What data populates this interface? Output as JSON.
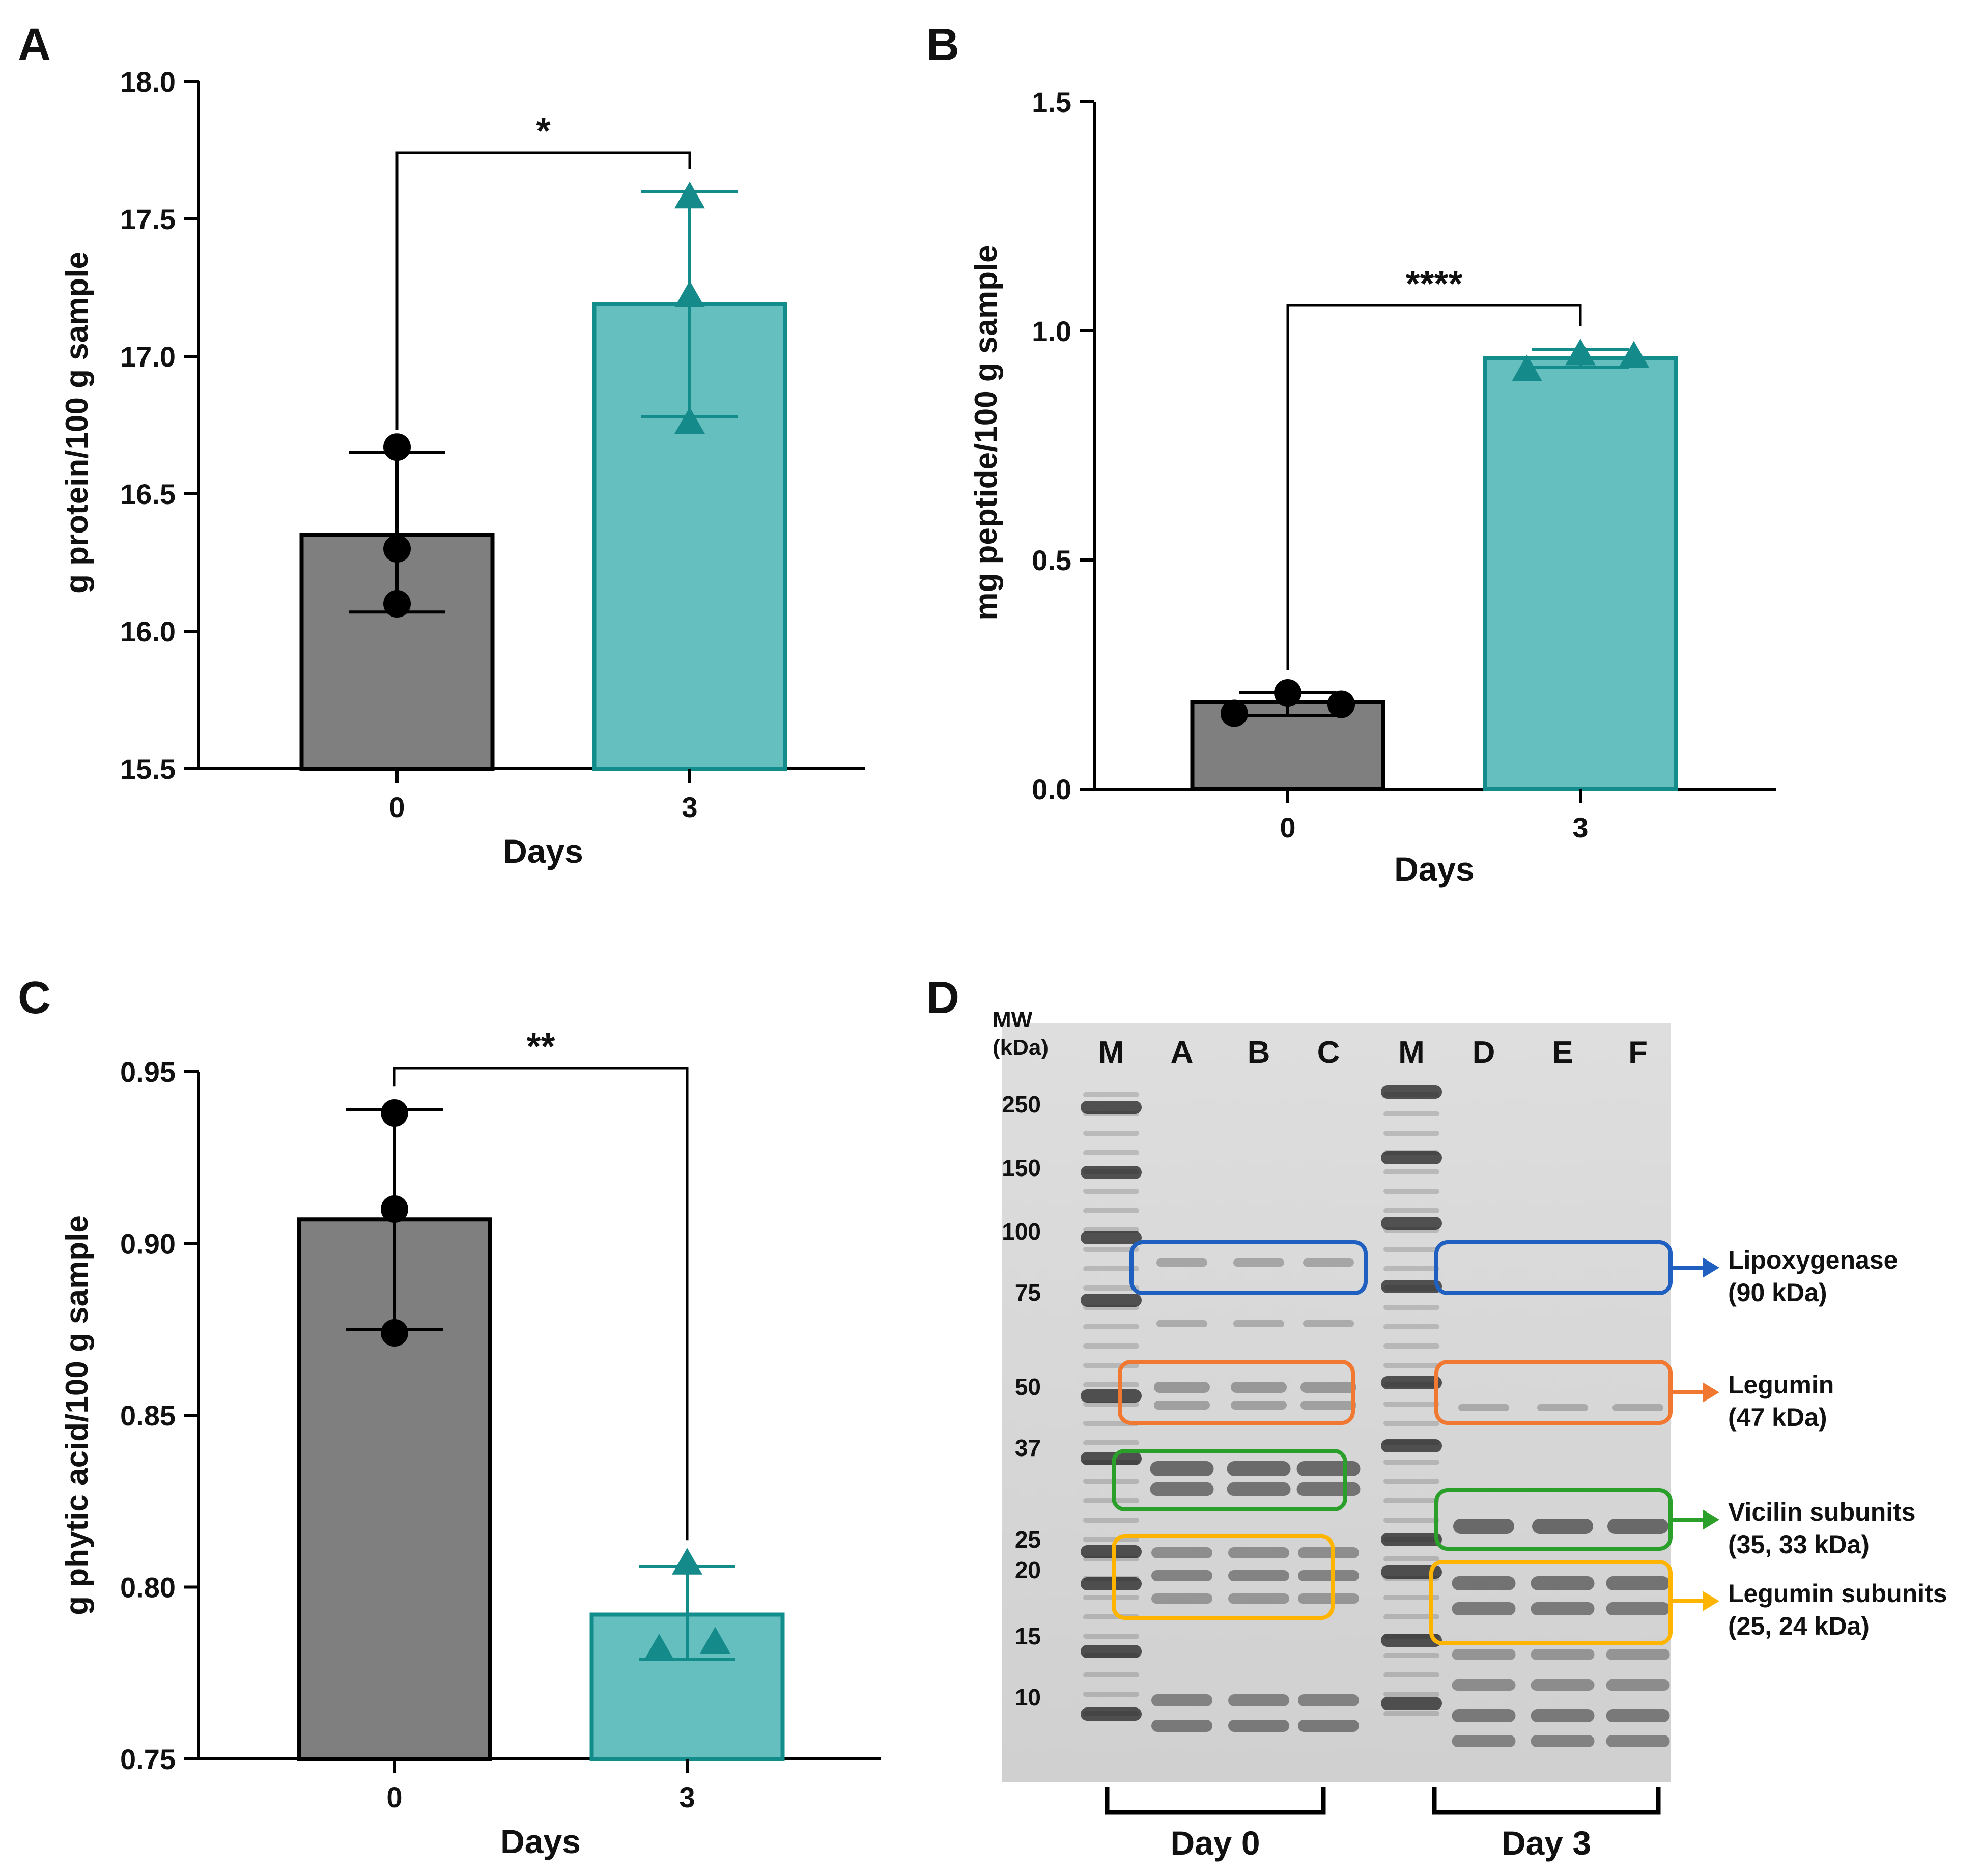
{
  "panels": {
    "A": {
      "letter": "A"
    },
    "B": {
      "letter": "B"
    },
    "C": {
      "letter": "C"
    },
    "D": {
      "letter": "D"
    }
  },
  "chart_data": [
    {
      "panel": "A",
      "type": "bar",
      "xlabel": "Days",
      "ylabel": "g protein/100 g sample",
      "ylim": [
        15.5,
        18.0
      ],
      "yticks": [
        "15.5",
        "16.0",
        "16.5",
        "17.0",
        "17.5",
        "18.0"
      ],
      "categories": [
        "0",
        "3"
      ],
      "values": [
        16.35,
        17.19
      ],
      "error_low": [
        16.07,
        16.78
      ],
      "error_high": [
        16.65,
        17.6
      ],
      "points": [
        [
          16.67,
          16.3,
          16.1
        ],
        [
          17.58,
          17.22,
          16.76
        ]
      ],
      "significance": "*",
      "colors": [
        "#7f7f7f",
        "#66bfbf"
      ],
      "edge_colors": [
        "#000000",
        "#138c8c"
      ]
    },
    {
      "panel": "B",
      "type": "bar",
      "xlabel": "Days",
      "ylabel": "mg peptide/100 g sample",
      "ylim": [
        0.0,
        1.5
      ],
      "yticks": [
        "0.0",
        "0.5",
        "1.0",
        "1.5"
      ],
      "categories": [
        "0",
        "3"
      ],
      "values": [
        0.19,
        0.94
      ],
      "error_low": [
        0.16,
        0.92
      ],
      "error_high": [
        0.21,
        0.96
      ],
      "points": [
        [
          0.165,
          0.21,
          0.185
        ],
        [
          0.915,
          0.95,
          0.945
        ]
      ],
      "significance": "****",
      "colors": [
        "#7f7f7f",
        "#66bfbf"
      ],
      "edge_colors": [
        "#000000",
        "#138c8c"
      ]
    },
    {
      "panel": "C",
      "type": "bar",
      "xlabel": "Days",
      "ylabel": "g phytic acid/100 g sample",
      "ylim": [
        0.75,
        0.95
      ],
      "yticks": [
        "0.75",
        "0.80",
        "0.85",
        "0.90",
        "0.95"
      ],
      "categories": [
        "0",
        "3"
      ],
      "values": [
        0.907,
        0.792
      ],
      "error_low": [
        0.875,
        0.779
      ],
      "error_high": [
        0.939,
        0.806
      ],
      "points": [
        [
          0.938,
          0.91,
          0.874
        ],
        [
          0.807,
          0.782,
          0.784
        ]
      ],
      "significance": "**",
      "colors": [
        "#7f7f7f",
        "#66bfbf"
      ],
      "edge_colors": [
        "#000000",
        "#138c8c"
      ]
    }
  ],
  "gel": {
    "mw_header": [
      "MW",
      "(kDa)"
    ],
    "lane_labels": [
      "M",
      "A",
      "B",
      "C",
      "M",
      "D",
      "E",
      "F"
    ],
    "markers": [
      "250",
      "150",
      "100",
      "75",
      "50",
      "37",
      "25",
      "20",
      "15",
      "10"
    ],
    "groups": [
      "Day 0",
      "Day 3"
    ],
    "annotations": [
      {
        "label": "Lipoxygenase",
        "sub": "(90 kDa)",
        "color": "#1f5fbf"
      },
      {
        "label": "Legumin",
        "sub": "(47 kDa)",
        "color": "#f07830"
      },
      {
        "label": "Vicilin subunits",
        "sub": "(35, 33 kDa)",
        "color": "#2aa02a"
      },
      {
        "label": "Legumin subunits",
        "sub": "(25, 24 kDa)",
        "color": "#ffb400"
      }
    ]
  }
}
